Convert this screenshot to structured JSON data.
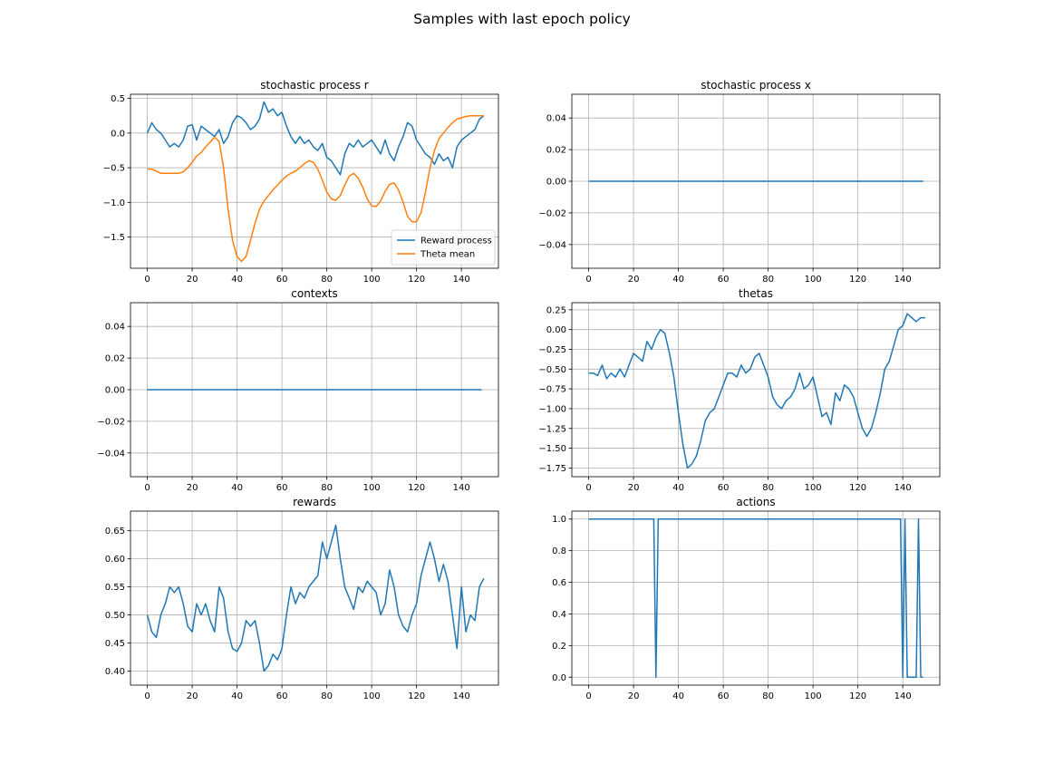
{
  "figure": {
    "title": "Samples with last epoch policy"
  },
  "colors": {
    "series_blue": "#1f77b4",
    "series_orange": "#ff7f0e",
    "grid": "#b0b0b0",
    "axes": "#000000"
  },
  "chart_data": [
    {
      "id": "stochastic-process-r",
      "type": "line",
      "title": "stochastic process r",
      "xlim": [
        -7.5,
        156.5
      ],
      "ylim": [
        -1.95,
        0.56
      ],
      "xticks": [
        0,
        20,
        40,
        60,
        80,
        100,
        120,
        140
      ],
      "yticks": [
        -1.5,
        -1.0,
        -0.5,
        0.0,
        0.5
      ],
      "ytick_labels": [
        "−1.5",
        "−1.0",
        "−0.5",
        "0.0",
        "0.5"
      ],
      "grid": true,
      "legend": "lower-right",
      "series": [
        {
          "name": "Reward process",
          "color": "#1f77b4",
          "x": [
            0,
            2,
            4,
            6,
            8,
            10,
            12,
            14,
            16,
            18,
            20,
            22,
            24,
            26,
            28,
            30,
            32,
            34,
            36,
            38,
            40,
            42,
            44,
            46,
            48,
            50,
            52,
            54,
            56,
            58,
            60,
            62,
            64,
            66,
            68,
            70,
            72,
            74,
            76,
            78,
            80,
            82,
            84,
            86,
            88,
            90,
            92,
            94,
            96,
            98,
            100,
            102,
            104,
            106,
            108,
            110,
            112,
            114,
            116,
            118,
            120,
            122,
            124,
            126,
            128,
            130,
            132,
            134,
            136,
            138,
            140,
            142,
            144,
            146,
            148,
            150
          ],
          "y": [
            0.0,
            0.15,
            0.05,
            0.0,
            -0.1,
            -0.2,
            -0.15,
            -0.2,
            -0.1,
            0.1,
            0.12,
            -0.1,
            0.1,
            0.05,
            0.0,
            -0.05,
            0.05,
            -0.15,
            -0.05,
            0.15,
            0.25,
            0.22,
            0.15,
            0.05,
            0.1,
            0.2,
            0.45,
            0.3,
            0.35,
            0.25,
            0.3,
            0.1,
            -0.05,
            -0.15,
            -0.05,
            -0.15,
            -0.1,
            -0.2,
            -0.25,
            -0.15,
            -0.35,
            -0.4,
            -0.5,
            -0.6,
            -0.3,
            -0.15,
            -0.2,
            -0.1,
            -0.2,
            -0.15,
            -0.1,
            -0.2,
            -0.3,
            -0.1,
            -0.3,
            -0.4,
            -0.2,
            -0.05,
            0.15,
            0.1,
            -0.1,
            -0.2,
            -0.3,
            -0.35,
            -0.45,
            -0.3,
            -0.4,
            -0.35,
            -0.5,
            -0.2,
            -0.1,
            -0.05,
            0.0,
            0.05,
            0.2,
            0.25
          ]
        },
        {
          "name": "Theta mean",
          "color": "#ff7f0e",
          "x": [
            0,
            2,
            4,
            6,
            8,
            10,
            12,
            14,
            16,
            18,
            20,
            22,
            24,
            26,
            28,
            30,
            32,
            34,
            36,
            38,
            40,
            42,
            44,
            46,
            48,
            50,
            52,
            54,
            56,
            58,
            60,
            62,
            64,
            66,
            68,
            70,
            72,
            74,
            76,
            78,
            80,
            82,
            84,
            86,
            88,
            90,
            92,
            94,
            96,
            98,
            100,
            102,
            104,
            106,
            108,
            110,
            112,
            114,
            116,
            118,
            120,
            122,
            124,
            126,
            128,
            130,
            132,
            134,
            136,
            138,
            140,
            142,
            144,
            146,
            148,
            150
          ],
          "y": [
            -0.52,
            -0.52,
            -0.55,
            -0.58,
            -0.58,
            -0.58,
            -0.58,
            -0.58,
            -0.56,
            -0.5,
            -0.42,
            -0.33,
            -0.28,
            -0.2,
            -0.13,
            -0.06,
            -0.12,
            -0.5,
            -1.1,
            -1.55,
            -1.78,
            -1.85,
            -1.78,
            -1.55,
            -1.3,
            -1.1,
            -0.98,
            -0.9,
            -0.82,
            -0.75,
            -0.68,
            -0.62,
            -0.58,
            -0.55,
            -0.5,
            -0.44,
            -0.4,
            -0.42,
            -0.52,
            -0.68,
            -0.85,
            -0.95,
            -0.97,
            -0.9,
            -0.75,
            -0.62,
            -0.58,
            -0.65,
            -0.78,
            -0.95,
            -1.05,
            -1.06,
            -0.98,
            -0.84,
            -0.74,
            -0.72,
            -0.82,
            -1.0,
            -1.2,
            -1.28,
            -1.28,
            -1.15,
            -0.85,
            -0.5,
            -0.25,
            -0.08,
            0.0,
            0.08,
            0.15,
            0.2,
            0.22,
            0.24,
            0.25,
            0.25,
            0.25,
            0.25
          ]
        }
      ]
    },
    {
      "id": "stochastic-process-x",
      "type": "line",
      "title": "stochastic process x",
      "xlim": [
        -7.5,
        156.5
      ],
      "ylim": [
        -0.055,
        0.055
      ],
      "xticks": [
        0,
        20,
        40,
        60,
        80,
        100,
        120,
        140
      ],
      "yticks": [
        -0.04,
        -0.02,
        0.0,
        0.02,
        0.04
      ],
      "ytick_labels": [
        "−0.04",
        "−0.02",
        "0.00",
        "0.02",
        "0.04"
      ],
      "grid": true,
      "series": [
        {
          "color": "#1f77b4",
          "x": [
            0,
            149
          ],
          "y": [
            0.0,
            0.0
          ]
        }
      ]
    },
    {
      "id": "contexts",
      "type": "line",
      "title": "contexts",
      "xlim": [
        -7.5,
        156.5
      ],
      "ylim": [
        -0.055,
        0.055
      ],
      "xticks": [
        0,
        20,
        40,
        60,
        80,
        100,
        120,
        140
      ],
      "yticks": [
        -0.04,
        -0.02,
        0.0,
        0.02,
        0.04
      ],
      "ytick_labels": [
        "−0.04",
        "−0.02",
        "0.00",
        "0.02",
        "0.04"
      ],
      "grid": true,
      "series": [
        {
          "color": "#1f77b4",
          "x": [
            0,
            149
          ],
          "y": [
            0.0,
            0.0
          ]
        }
      ]
    },
    {
      "id": "thetas",
      "type": "line",
      "title": "thetas",
      "xlim": [
        -7.5,
        156.5
      ],
      "ylim": [
        -1.86,
        0.34
      ],
      "xticks": [
        0,
        20,
        40,
        60,
        80,
        100,
        120,
        140
      ],
      "yticks": [
        -1.75,
        -1.5,
        -1.25,
        -1.0,
        -0.75,
        -0.5,
        -0.25,
        0.0,
        0.25
      ],
      "ytick_labels": [
        "−1.75",
        "−1.50",
        "−1.25",
        "−1.00",
        "−0.75",
        "−0.50",
        "−0.25",
        "0.00",
        "0.25"
      ],
      "grid": true,
      "series": [
        {
          "color": "#1f77b4",
          "x": [
            0,
            2,
            4,
            6,
            8,
            10,
            12,
            14,
            16,
            18,
            20,
            22,
            24,
            26,
            28,
            30,
            32,
            34,
            36,
            38,
            40,
            42,
            44,
            46,
            48,
            50,
            52,
            54,
            56,
            58,
            60,
            62,
            64,
            66,
            68,
            70,
            72,
            74,
            76,
            78,
            80,
            82,
            84,
            86,
            88,
            90,
            92,
            94,
            96,
            98,
            100,
            102,
            104,
            106,
            108,
            110,
            112,
            114,
            116,
            118,
            120,
            122,
            124,
            126,
            128,
            130,
            132,
            134,
            136,
            138,
            140,
            142,
            144,
            146,
            148,
            150
          ],
          "y": [
            -0.55,
            -0.55,
            -0.58,
            -0.45,
            -0.62,
            -0.55,
            -0.6,
            -0.5,
            -0.6,
            -0.45,
            -0.3,
            -0.35,
            -0.4,
            -0.15,
            -0.25,
            -0.1,
            0.0,
            -0.05,
            -0.3,
            -0.6,
            -1.05,
            -1.45,
            -1.75,
            -1.7,
            -1.6,
            -1.4,
            -1.15,
            -1.05,
            -1.0,
            -0.85,
            -0.7,
            -0.55,
            -0.55,
            -0.6,
            -0.45,
            -0.55,
            -0.5,
            -0.35,
            -0.3,
            -0.45,
            -0.6,
            -0.85,
            -0.95,
            -1.0,
            -0.9,
            -0.85,
            -0.75,
            -0.55,
            -0.75,
            -0.7,
            -0.6,
            -0.85,
            -1.1,
            -1.05,
            -1.2,
            -0.8,
            -0.9,
            -0.7,
            -0.75,
            -0.85,
            -1.05,
            -1.25,
            -1.35,
            -1.25,
            -1.05,
            -0.8,
            -0.5,
            -0.4,
            -0.2,
            0.0,
            0.05,
            0.2,
            0.15,
            0.1,
            0.15,
            0.15
          ]
        }
      ]
    },
    {
      "id": "rewards",
      "type": "line",
      "title": "rewards",
      "xlim": [
        -7.5,
        156.5
      ],
      "ylim": [
        0.375,
        0.685
      ],
      "xticks": [
        0,
        20,
        40,
        60,
        80,
        100,
        120,
        140
      ],
      "yticks": [
        0.4,
        0.45,
        0.5,
        0.55,
        0.6,
        0.65
      ],
      "ytick_labels": [
        "0.40",
        "0.45",
        "0.50",
        "0.55",
        "0.60",
        "0.65"
      ],
      "grid": true,
      "series": [
        {
          "color": "#1f77b4",
          "x": [
            0,
            2,
            4,
            6,
            8,
            10,
            12,
            14,
            16,
            18,
            20,
            22,
            24,
            26,
            28,
            30,
            32,
            34,
            36,
            38,
            40,
            42,
            44,
            46,
            48,
            50,
            52,
            54,
            56,
            58,
            60,
            62,
            64,
            66,
            68,
            70,
            72,
            74,
            76,
            78,
            80,
            82,
            84,
            86,
            88,
            90,
            92,
            94,
            96,
            98,
            100,
            102,
            104,
            106,
            108,
            110,
            112,
            114,
            116,
            118,
            120,
            122,
            124,
            126,
            128,
            130,
            132,
            134,
            136,
            138,
            140,
            142,
            144,
            146,
            148,
            150
          ],
          "y": [
            0.5,
            0.47,
            0.46,
            0.5,
            0.52,
            0.55,
            0.54,
            0.55,
            0.52,
            0.48,
            0.47,
            0.52,
            0.5,
            0.52,
            0.49,
            0.47,
            0.55,
            0.53,
            0.47,
            0.44,
            0.435,
            0.45,
            0.49,
            0.48,
            0.49,
            0.45,
            0.4,
            0.41,
            0.43,
            0.42,
            0.44,
            0.5,
            0.55,
            0.52,
            0.54,
            0.53,
            0.55,
            0.56,
            0.57,
            0.63,
            0.6,
            0.63,
            0.66,
            0.6,
            0.55,
            0.53,
            0.51,
            0.55,
            0.54,
            0.56,
            0.55,
            0.54,
            0.5,
            0.52,
            0.58,
            0.55,
            0.5,
            0.48,
            0.47,
            0.5,
            0.52,
            0.57,
            0.6,
            0.63,
            0.6,
            0.56,
            0.59,
            0.56,
            0.5,
            0.44,
            0.55,
            0.47,
            0.5,
            0.49,
            0.55,
            0.565
          ]
        }
      ]
    },
    {
      "id": "actions",
      "type": "line",
      "title": "actions",
      "xlim": [
        -7.5,
        156.5
      ],
      "ylim": [
        -0.05,
        1.05
      ],
      "xticks": [
        0,
        20,
        40,
        60,
        80,
        100,
        120,
        140
      ],
      "yticks": [
        0.0,
        0.2,
        0.4,
        0.6,
        0.8,
        1.0
      ],
      "ytick_labels": [
        "0.0",
        "0.2",
        "0.4",
        "0.6",
        "0.8",
        "1.0"
      ],
      "grid": true,
      "series": [
        {
          "color": "#1f77b4",
          "x": [
            0,
            29,
            30,
            31,
            139,
            140,
            141,
            142,
            146,
            147,
            148,
            149
          ],
          "y": [
            1,
            1,
            0,
            1,
            1,
            0,
            1,
            0,
            0,
            1,
            0,
            0
          ]
        }
      ]
    }
  ]
}
